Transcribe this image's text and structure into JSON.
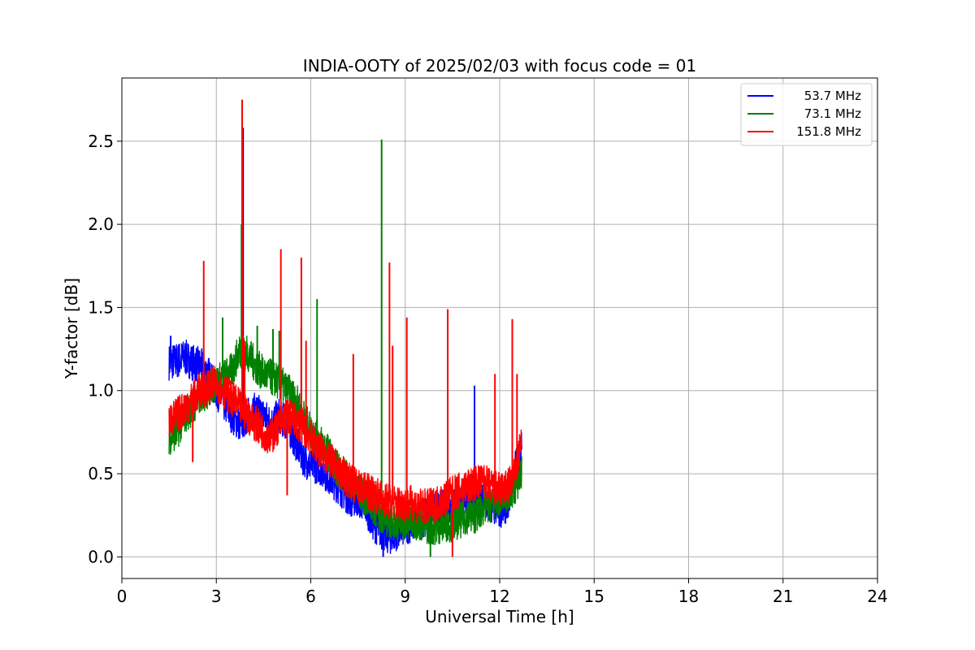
{
  "chart_data": {
    "type": "line",
    "title": "INDIA-OOTY of 2025/02/03 with focus code = 01",
    "xlabel": "Universal Time [h]",
    "ylabel": "Y-factor [dB]",
    "xlim": [
      0,
      24
    ],
    "ylim": [
      -0.13,
      2.88
    ],
    "xticks": [
      0,
      3,
      6,
      9,
      12,
      15,
      18,
      21,
      24
    ],
    "xtick_labels": [
      "0",
      "3",
      "6",
      "9",
      "12",
      "15",
      "18",
      "21",
      "24"
    ],
    "yticks": [
      0.0,
      0.5,
      1.0,
      1.5,
      2.0,
      2.5
    ],
    "ytick_labels": [
      "0.0",
      "0.5",
      "1.0",
      "1.5",
      "2.0",
      "2.5"
    ],
    "grid": true,
    "legend_position": "top-right",
    "series": [
      {
        "name": "53.7 MHz",
        "color": "#0000ff",
        "x": [
          1.5,
          1.75,
          2.0,
          2.25,
          2.5,
          2.75,
          3.0,
          3.25,
          3.5,
          3.75,
          4.0,
          4.25,
          4.5,
          4.75,
          5.0,
          5.25,
          5.5,
          5.75,
          6.0,
          6.25,
          6.5,
          6.75,
          7.0,
          7.25,
          7.5,
          7.75,
          8.0,
          8.25,
          8.5,
          8.75,
          9.0,
          9.25,
          9.5,
          9.75,
          10.0,
          10.25,
          10.5,
          10.75,
          11.0,
          11.25,
          11.5,
          11.75,
          12.0,
          12.25,
          12.5,
          12.7
        ],
        "y": [
          1.17,
          1.18,
          1.2,
          1.17,
          1.15,
          1.1,
          1.0,
          0.92,
          0.85,
          0.8,
          0.85,
          0.88,
          0.85,
          0.8,
          0.85,
          0.8,
          0.7,
          0.6,
          0.55,
          0.55,
          0.5,
          0.45,
          0.4,
          0.35,
          0.35,
          0.3,
          0.2,
          0.15,
          0.12,
          0.15,
          0.18,
          0.2,
          0.22,
          0.25,
          0.28,
          0.3,
          0.32,
          0.35,
          0.38,
          0.35,
          0.32,
          0.3,
          0.28,
          0.32,
          0.55,
          0.65
        ],
        "spikes": [
          [
            1.55,
            1.33
          ],
          [
            3.85,
            2.58
          ],
          [
            8.3,
            0.0
          ],
          [
            11.2,
            1.03
          ]
        ]
      },
      {
        "name": "73.1 MHz",
        "color": "#008000",
        "x": [
          1.5,
          1.75,
          2.0,
          2.25,
          2.5,
          2.75,
          3.0,
          3.25,
          3.5,
          3.75,
          4.0,
          4.25,
          4.5,
          4.75,
          5.0,
          5.25,
          5.5,
          5.75,
          6.0,
          6.25,
          6.5,
          6.75,
          7.0,
          7.25,
          7.5,
          7.75,
          8.0,
          8.25,
          8.5,
          8.75,
          9.0,
          9.25,
          9.5,
          9.75,
          10.0,
          10.25,
          10.5,
          10.75,
          11.0,
          11.25,
          11.5,
          11.75,
          12.0,
          12.25,
          12.5,
          12.7
        ],
        "y": [
          0.72,
          0.75,
          0.85,
          0.9,
          0.97,
          1.0,
          1.05,
          1.08,
          1.12,
          1.25,
          1.22,
          1.15,
          1.1,
          1.08,
          1.05,
          1.0,
          0.95,
          0.85,
          0.75,
          0.7,
          0.65,
          0.55,
          0.5,
          0.45,
          0.4,
          0.35,
          0.3,
          0.25,
          0.22,
          0.2,
          0.2,
          0.22,
          0.2,
          0.18,
          0.18,
          0.2,
          0.2,
          0.22,
          0.25,
          0.25,
          0.3,
          0.32,
          0.35,
          0.38,
          0.42,
          0.5
        ],
        "spikes": [
          [
            3.2,
            1.44
          ],
          [
            3.8,
            2.0
          ],
          [
            4.3,
            1.39
          ],
          [
            4.8,
            1.37
          ],
          [
            5.0,
            1.36
          ],
          [
            5.7,
            1.38
          ],
          [
            6.2,
            1.55
          ],
          [
            8.25,
            2.51
          ],
          [
            9.8,
            0.0
          ]
        ]
      },
      {
        "name": "151.8 MHz",
        "color": "#ff0000",
        "x": [
          1.5,
          1.75,
          2.0,
          2.25,
          2.5,
          2.75,
          3.0,
          3.25,
          3.5,
          3.75,
          4.0,
          4.25,
          4.5,
          4.75,
          5.0,
          5.25,
          5.5,
          5.75,
          6.0,
          6.25,
          6.5,
          6.75,
          7.0,
          7.25,
          7.5,
          7.75,
          8.0,
          8.25,
          8.5,
          8.75,
          9.0,
          9.25,
          9.5,
          9.75,
          10.0,
          10.25,
          10.5,
          10.75,
          11.0,
          11.25,
          11.5,
          11.75,
          12.0,
          12.25,
          12.5,
          12.7
        ],
        "y": [
          0.82,
          0.85,
          0.9,
          0.95,
          1.0,
          1.02,
          1.04,
          1.0,
          0.95,
          0.9,
          0.85,
          0.8,
          0.75,
          0.72,
          0.8,
          0.85,
          0.82,
          0.78,
          0.72,
          0.65,
          0.6,
          0.55,
          0.5,
          0.45,
          0.42,
          0.4,
          0.38,
          0.35,
          0.33,
          0.32,
          0.32,
          0.32,
          0.3,
          0.3,
          0.32,
          0.35,
          0.38,
          0.4,
          0.42,
          0.45,
          0.45,
          0.42,
          0.4,
          0.42,
          0.5,
          0.7
        ],
        "spikes": [
          [
            2.25,
            0.57
          ],
          [
            2.6,
            1.78
          ],
          [
            3.82,
            2.75
          ],
          [
            3.9,
            1.3
          ],
          [
            5.05,
            1.85
          ],
          [
            5.25,
            0.37
          ],
          [
            5.7,
            1.8
          ],
          [
            5.85,
            1.3
          ],
          [
            7.35,
            1.22
          ],
          [
            8.5,
            1.77
          ],
          [
            8.6,
            1.27
          ],
          [
            9.05,
            1.44
          ],
          [
            10.35,
            1.49
          ],
          [
            10.5,
            0.0
          ],
          [
            11.85,
            1.1
          ],
          [
            12.4,
            1.43
          ],
          [
            12.55,
            1.1
          ]
        ]
      }
    ]
  }
}
